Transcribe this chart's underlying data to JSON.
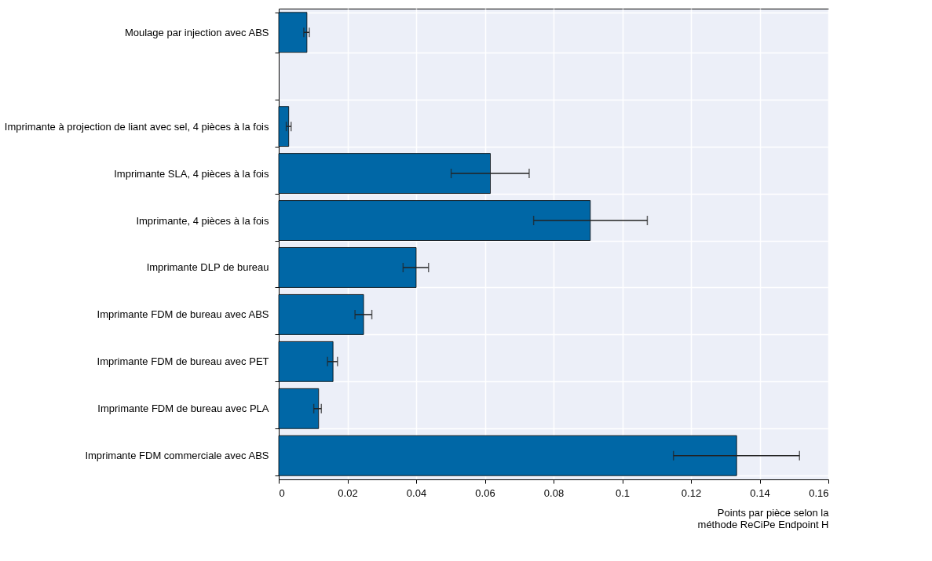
{
  "chart_data": {
    "type": "bar",
    "orientation": "horizontal",
    "xlabel": "Points par pièce selon la\nméthode ReCiPe Endpoint H",
    "categories": [
      "Moulage par injection avec ABS",
      null,
      "Imprimante à projection de liant avec sel, 4 pièces à la fois",
      "Imprimante SLA, 4 pièces à la fois",
      "Imprimante, 4 pièces à la fois",
      "Imprimante DLP de bureau",
      "Imprimante FDM de bureau avec ABS",
      "Imprimante FDM de bureau avec PET",
      "Imprimante FDM de bureau avec PLA",
      "Imprimante FDM commerciale avec ABS"
    ],
    "values": [
      0.0082,
      null,
      0.0029,
      0.0616,
      0.0907,
      0.04,
      0.0247,
      0.0158,
      0.0116,
      0.1333
    ],
    "errors": [
      [
        0.0073,
        0.0089
      ],
      null,
      [
        0.0022,
        0.0036
      ],
      [
        0.0502,
        0.0729
      ],
      [
        0.0742,
        0.1073
      ],
      [
        0.0362,
        0.0436
      ],
      [
        0.0222,
        0.0271
      ],
      [
        0.0142,
        0.0171
      ],
      [
        0.0102,
        0.0124
      ],
      [
        0.1149,
        0.1516
      ]
    ],
    "color": "#0067a6",
    "xlim": [
      0,
      0.16
    ],
    "xticks": [
      {
        "value": 0,
        "label": "0"
      },
      0.02,
      0.04,
      0.06,
      0.08,
      {
        "value": 0.1,
        "label": "0.1"
      },
      0.12,
      0.14,
      0.16
    ],
    "grid": true
  }
}
